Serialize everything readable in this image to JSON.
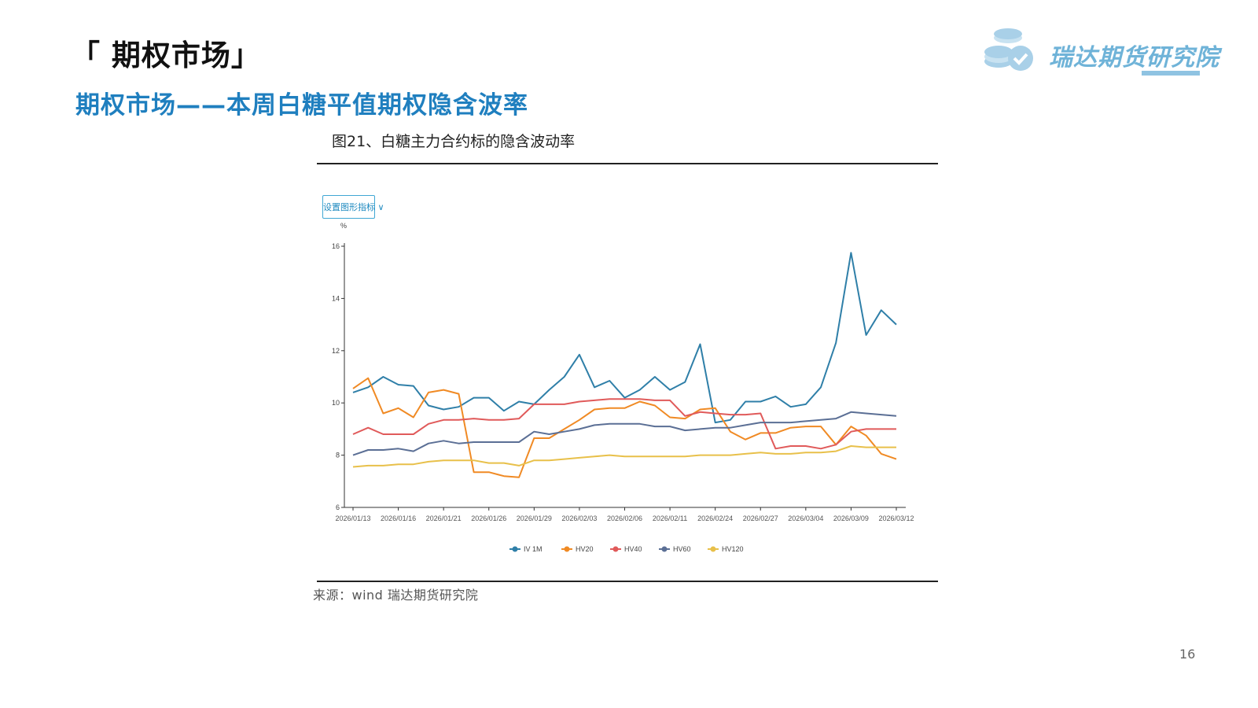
{
  "header": {
    "section_title": "「 期权市场」",
    "subtitle": "期权市场——本周白糖平值期权隐含波率",
    "logo_text": "瑞达期货研究院"
  },
  "figure": {
    "caption": "图21、白糖主力合约标的隐含波动率",
    "button_label": "设置图形指标 ∨",
    "unit": "%",
    "source": "来源：wind   瑞达期货研究院"
  },
  "page_number": "16",
  "colors": {
    "brand": "#1f7fbf",
    "logo": "#6fb3d8"
  },
  "chart_data": {
    "type": "line",
    "ylabel": "%",
    "ylim": [
      6,
      16
    ],
    "yticks": [
      6,
      8,
      10,
      12,
      14,
      16
    ],
    "x_tick_labels": [
      "2026/01/13",
      "2026/01/16",
      "2026/01/21",
      "2026/01/26",
      "2026/01/29",
      "2026/02/03",
      "2026/02/06",
      "2026/02/11",
      "2026/02/24",
      "2026/02/27",
      "2026/03/04",
      "2026/03/09",
      "2026/03/12"
    ],
    "x_tick_index": [
      0,
      3,
      6,
      9,
      12,
      15,
      18,
      21,
      24,
      27,
      30,
      33,
      36
    ],
    "legend_position": "bottom",
    "series": [
      {
        "name": "IV 1M",
        "color": "#2f7fa8",
        "values": [
          10.4,
          10.6,
          11.0,
          10.7,
          10.65,
          9.9,
          9.75,
          9.85,
          10.2,
          10.2,
          9.7,
          10.05,
          9.95,
          10.5,
          11.0,
          11.85,
          10.6,
          10.85,
          10.2,
          10.5,
          11.0,
          10.5,
          10.8,
          12.25,
          9.25,
          9.35,
          10.05,
          10.05,
          10.25,
          9.85,
          9.95,
          10.6,
          12.3,
          15.75,
          12.6,
          13.55,
          13.0
        ]
      },
      {
        "name": "HV20",
        "color": "#f08a24",
        "values": [
          10.55,
          10.95,
          9.6,
          9.8,
          9.45,
          10.4,
          10.5,
          10.35,
          7.35,
          7.35,
          7.2,
          7.15,
          8.65,
          8.65,
          9.0,
          9.35,
          9.75,
          9.8,
          9.8,
          10.05,
          9.9,
          9.45,
          9.4,
          9.75,
          9.8,
          8.9,
          8.6,
          8.85,
          8.85,
          9.05,
          9.1,
          9.1,
          8.4,
          9.1,
          8.75,
          8.05,
          7.85
        ]
      },
      {
        "name": "HV40",
        "color": "#e05a5a",
        "values": [
          8.8,
          9.05,
          8.8,
          8.8,
          8.8,
          9.2,
          9.35,
          9.35,
          9.4,
          9.35,
          9.35,
          9.4,
          9.95,
          9.95,
          9.95,
          10.05,
          10.1,
          10.15,
          10.15,
          10.15,
          10.1,
          10.1,
          9.5,
          9.65,
          9.6,
          9.55,
          9.55,
          9.6,
          8.25,
          8.35,
          8.35,
          8.25,
          8.4,
          8.9,
          9.0,
          9.0,
          9.0
        ]
      },
      {
        "name": "HV60",
        "color": "#5b6f95",
        "values": [
          8.0,
          8.2,
          8.2,
          8.25,
          8.15,
          8.45,
          8.55,
          8.45,
          8.5,
          8.5,
          8.5,
          8.5,
          8.9,
          8.8,
          8.9,
          9.0,
          9.15,
          9.2,
          9.2,
          9.2,
          9.1,
          9.1,
          8.95,
          9.0,
          9.05,
          9.05,
          9.15,
          9.25,
          9.25,
          9.25,
          9.3,
          9.35,
          9.4,
          9.65,
          9.6,
          9.55,
          9.5
        ]
      },
      {
        "name": "HV120",
        "color": "#e8c04a",
        "values": [
          7.55,
          7.6,
          7.6,
          7.65,
          7.65,
          7.75,
          7.8,
          7.8,
          7.8,
          7.7,
          7.7,
          7.6,
          7.8,
          7.8,
          7.85,
          7.9,
          7.95,
          8.0,
          7.95,
          7.95,
          7.95,
          7.95,
          7.95,
          8.0,
          8.0,
          8.0,
          8.05,
          8.1,
          8.05,
          8.05,
          8.1,
          8.1,
          8.15,
          8.35,
          8.3,
          8.3,
          8.3
        ]
      }
    ]
  }
}
